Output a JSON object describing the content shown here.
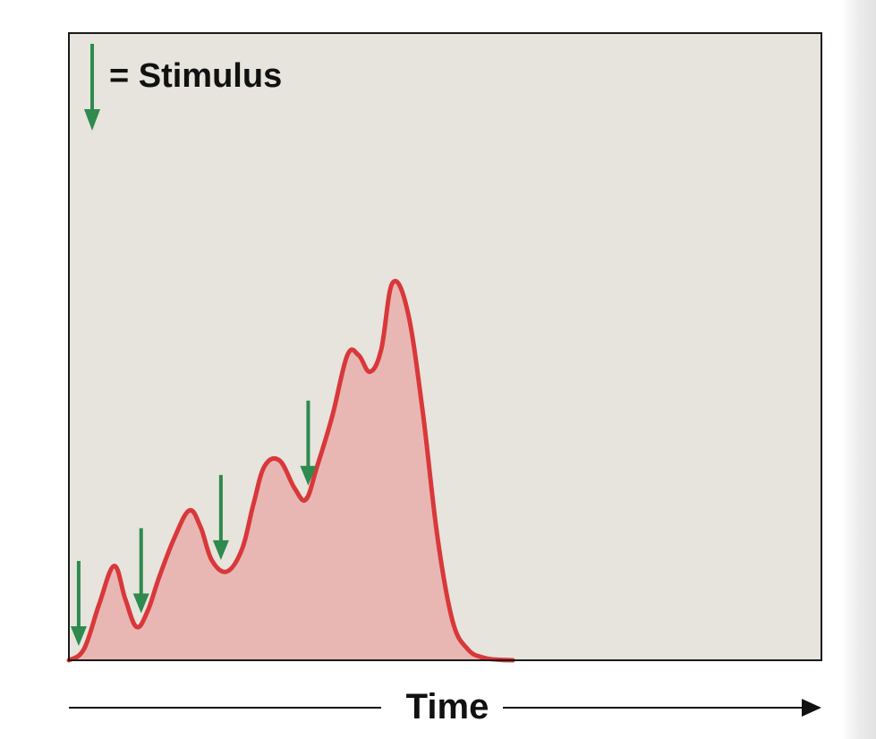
{
  "chart_data": {
    "type": "area",
    "title": "",
    "xlabel": "Time",
    "ylabel": "",
    "xlim": [
      0,
      100
    ],
    "ylim": [
      0,
      100
    ],
    "grid": false,
    "legend": {
      "placement": "top-left",
      "symbol": "down-arrow",
      "label": "= Stimulus"
    },
    "series": [
      {
        "x": [
          0,
          2,
          4,
          6,
          7.5,
          9,
          10.5,
          12,
          14,
          16,
          17.5,
          19,
          21,
          23,
          24.5,
          26,
          28,
          30,
          31.5,
          33,
          35,
          37,
          38.5,
          40,
          41.5,
          43,
          45,
          47,
          49,
          51,
          53,
          55,
          57,
          59,
          61,
          63,
          65,
          67,
          69.5,
          100
        ],
        "y": [
          0,
          2,
          10,
          17,
          11,
          6,
          9,
          15,
          22,
          27,
          24,
          18,
          16,
          20,
          28,
          35,
          36,
          31,
          29,
          35,
          44,
          55,
          55,
          52,
          56,
          68,
          63,
          45,
          22,
          7,
          2,
          0.5,
          0.1,
          0,
          0,
          0,
          0,
          0,
          0,
          0
        ]
      }
    ],
    "stimuli_x": [
      1.3,
      9.6,
      20.2,
      31.8
    ]
  },
  "colors": {
    "plot_background": "#e6e4dc",
    "curve": "#d9383b",
    "fill": "#e8b7b3",
    "arrow": "#2e8a4e",
    "frame": "#1a1a1a"
  }
}
